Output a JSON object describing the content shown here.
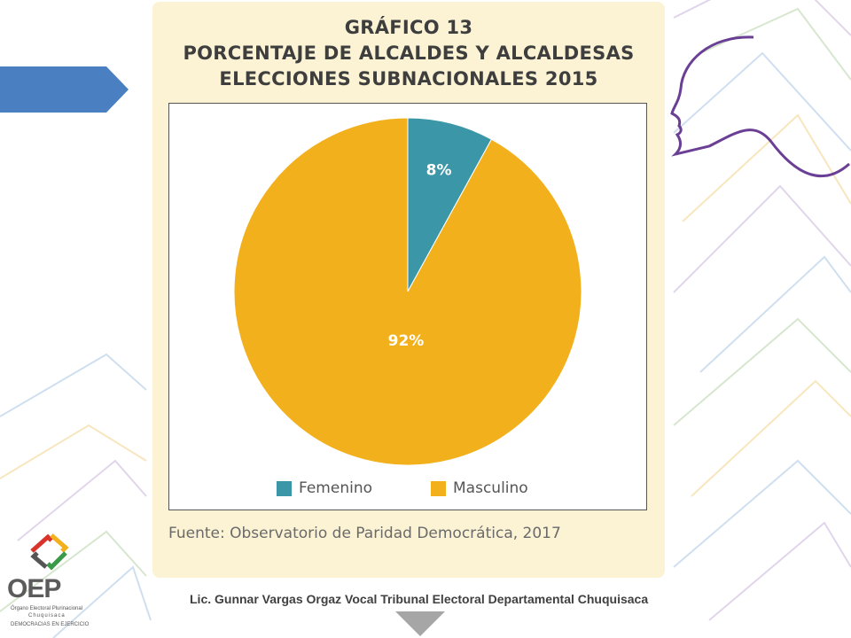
{
  "chart_data": {
    "type": "pie",
    "title_lines": [
      "GRÁFICO 13",
      "PORCENTAJE DE ALCALDES Y ALCALDESAS",
      "ELECCIONES SUBNACIONALES 2015"
    ],
    "categories": [
      "Femenino",
      "Masculino"
    ],
    "values": [
      8,
      92
    ],
    "value_labels": [
      "8%",
      "92%"
    ],
    "colors": [
      "#3b97a8",
      "#f2b01c"
    ],
    "legend_position": "bottom",
    "source": "Fuente: Observatorio de Paridad Democrática, 2017"
  },
  "footer": {
    "text": "Lic. Gunnar Vargas Orgaz Vocal Tribunal Electoral Departamental Chuquisaca"
  },
  "logo": {
    "name": "OEP",
    "line1": "Órgano Electoral Plurinacional",
    "line2": "Chuquisaca",
    "line3": "DEMOCRACIAS EN EJERCICIO"
  },
  "colors": {
    "card_bg": "#fbf3d4",
    "title": "#3e3e3e",
    "tab": "#4a7fc1",
    "face_line": "#5a2a8a"
  }
}
